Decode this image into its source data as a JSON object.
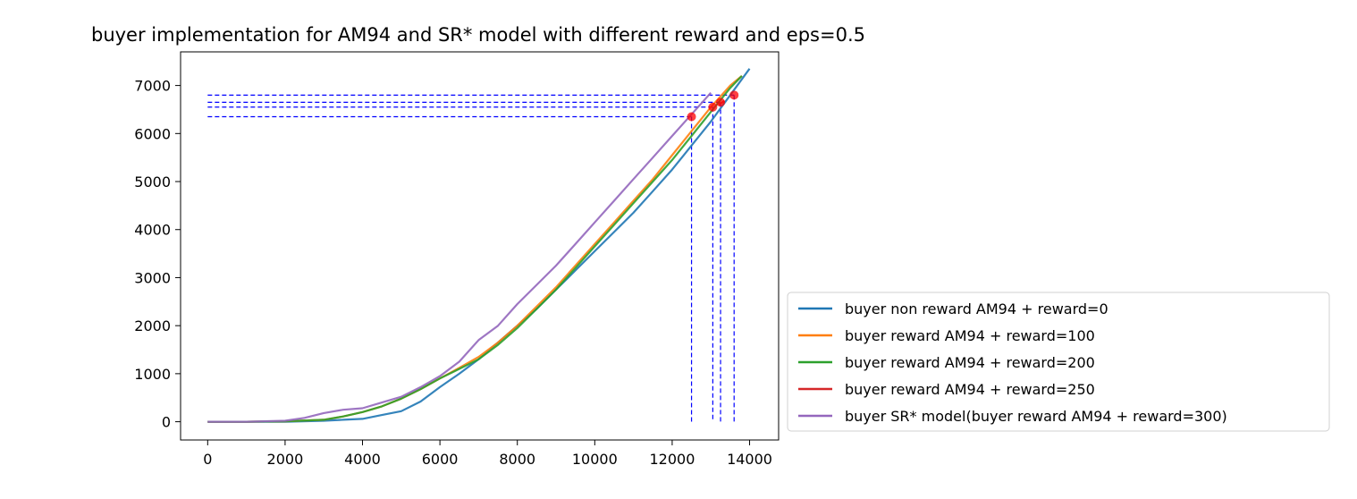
{
  "chart_data": {
    "type": "line",
    "title": "buyer implementation for AM94 and SR* model with different reward and eps=0.5",
    "xlabel": "",
    "ylabel": "",
    "xlim": [
      -700,
      14750
    ],
    "ylim": [
      -380,
      7700
    ],
    "x_ticks": [
      0,
      2000,
      4000,
      6000,
      8000,
      10000,
      12000,
      14000
    ],
    "y_ticks": [
      0,
      1000,
      2000,
      3000,
      4000,
      5000,
      6000,
      7000
    ],
    "grid": false,
    "legend_position": "outside right, lower",
    "series": [
      {
        "name": "buyer non reward AM94 + reward=0",
        "color": "#1f77b4",
        "x": [
          0,
          1000,
          2000,
          3000,
          3500,
          4000,
          4500,
          5000,
          5500,
          6000,
          6500,
          7000,
          7500,
          8000,
          8500,
          9000,
          9500,
          10000,
          10500,
          11000,
          11500,
          12000,
          12500,
          13000,
          13500,
          14000
        ],
        "y": [
          0,
          0,
          0,
          20,
          40,
          60,
          140,
          220,
          420,
          720,
          1000,
          1300,
          1650,
          2000,
          2350,
          2750,
          3150,
          3550,
          3950,
          4350,
          4800,
          5250,
          5750,
          6250,
          6800,
          7350
        ]
      },
      {
        "name": "buyer reward AM94 + reward=100",
        "color": "#ff7f0e",
        "x": [
          0,
          1000,
          2000,
          3000,
          3500,
          4000,
          4500,
          5000,
          5500,
          6000,
          6500,
          7000,
          7500,
          8000,
          8500,
          9000,
          9500,
          10000,
          10500,
          11000,
          11500,
          12000,
          12500,
          13000,
          13500,
          13800
        ],
        "y": [
          0,
          0,
          10,
          40,
          110,
          200,
          320,
          480,
          680,
          900,
          1120,
          1350,
          1650,
          2000,
          2400,
          2800,
          3250,
          3700,
          4150,
          4600,
          5050,
          5550,
          6050,
          6550,
          7000,
          7200
        ]
      },
      {
        "name": "buyer reward AM94 + reward=200",
        "color": "#2ca02c",
        "x": [
          0,
          1000,
          2000,
          3000,
          3500,
          4000,
          4500,
          5000,
          5500,
          6000,
          6500,
          7000,
          7500,
          8000,
          8500,
          9000,
          9500,
          10000,
          10500,
          11000,
          11500,
          12000,
          12500,
          13000,
          13500,
          13800
        ],
        "y": [
          0,
          0,
          10,
          40,
          110,
          200,
          320,
          480,
          680,
          900,
          1100,
          1300,
          1600,
          1950,
          2350,
          2750,
          3200,
          3650,
          4100,
          4550,
          5000,
          5450,
          5950,
          6450,
          6950,
          7200
        ]
      },
      {
        "name": "buyer reward AM94 + reward=250",
        "color": "#d62728",
        "x": [
          13200,
          13350
        ],
        "y": [
          6600,
          6680
        ]
      },
      {
        "name": "buyer SR* model(buyer reward AM94 + reward=300)",
        "color": "#9467bd",
        "x": [
          0,
          1000,
          2000,
          2500,
          3000,
          3500,
          4000,
          4500,
          5000,
          5500,
          6000,
          6500,
          7000,
          7500,
          8000,
          8500,
          9000,
          9500,
          10000,
          10500,
          11000,
          11500,
          12000,
          12500,
          13000
        ],
        "y": [
          0,
          0,
          20,
          80,
          180,
          250,
          280,
          400,
          520,
          720,
          950,
          1250,
          1700,
          2000,
          2450,
          2850,
          3250,
          3700,
          4150,
          4600,
          5050,
          5500,
          5950,
          6400,
          6850
        ]
      }
    ],
    "markers": [
      {
        "x": 12500,
        "y": 6350,
        "color": "#ff0000"
      },
      {
        "x": 13050,
        "y": 6550,
        "color": "#ff0000"
      },
      {
        "x": 13250,
        "y": 6650,
        "color": "#ff0000"
      },
      {
        "x": 13600,
        "y": 6800,
        "color": "#ff0000"
      }
    ],
    "guide_color": "#0000ff"
  }
}
